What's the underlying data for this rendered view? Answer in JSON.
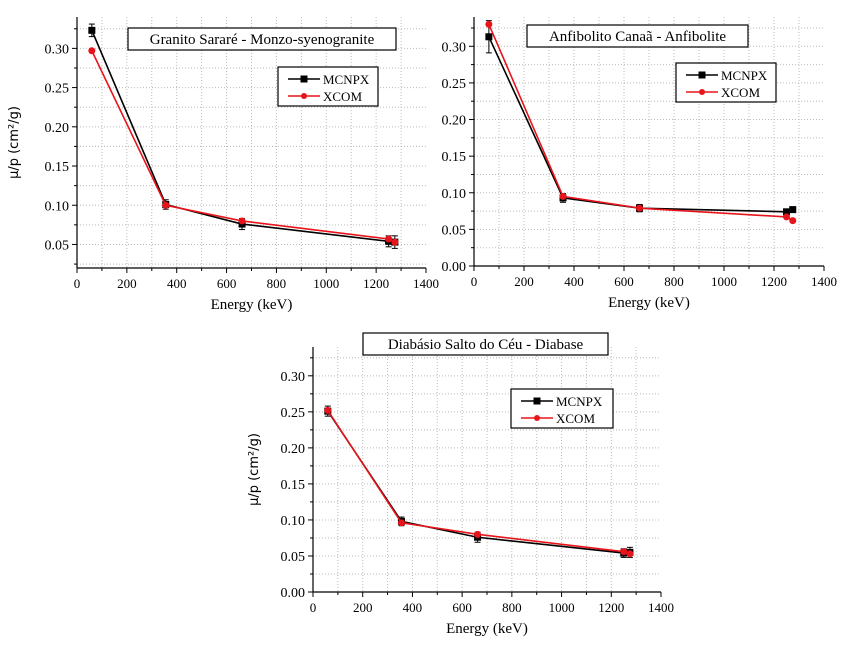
{
  "chart_data": [
    {
      "type": "line",
      "title": "Granito Sararé - Monzo-syenogranite",
      "xlabel": "Energy (keV)",
      "ylabel": "μ/p (cm²/g)",
      "xlim": [
        0,
        1400
      ],
      "ylim": [
        0.02,
        0.34
      ],
      "xticks": [
        0,
        200,
        400,
        600,
        800,
        1000,
        1200,
        1400
      ],
      "yticks": [
        0.05,
        0.1,
        0.15,
        0.2,
        0.25,
        0.3
      ],
      "grid": true,
      "legend": "top-right",
      "x": [
        59.5,
        356,
        662,
        1250,
        1275
      ],
      "series": [
        {
          "name": "MCNPX",
          "color": "#000000",
          "marker": "square",
          "values": [
            0.323,
            0.101,
            0.076,
            0.054,
            0.053
          ],
          "yerr": [
            0.008,
            0.006,
            0.007,
            0.007,
            0.008
          ]
        },
        {
          "name": "XCOM",
          "color": "#e8141b",
          "marker": "circle",
          "values": [
            0.297,
            0.1,
            0.08,
            0.057,
            0.053
          ]
        }
      ]
    },
    {
      "type": "line",
      "title": "Anfibolito Canaã - Anfibolite",
      "xlabel": "Energy (keV)",
      "ylabel": "",
      "xlim": [
        0,
        1400
      ],
      "ylim": [
        0,
        0.34
      ],
      "xticks": [
        0,
        200,
        400,
        600,
        800,
        1000,
        1200,
        1400
      ],
      "yticks": [
        0.0,
        0.05,
        0.1,
        0.15,
        0.2,
        0.25,
        0.3
      ],
      "grid": true,
      "legend": "top-right",
      "x": [
        59.5,
        356,
        662,
        1250,
        1275
      ],
      "series": [
        {
          "name": "MCNPX",
          "color": "#000000",
          "marker": "square",
          "values": [
            0.313,
            0.093,
            0.079,
            0.074,
            0.077
          ],
          "yerr": [
            0.022,
            0.006,
            0.005,
            0.003,
            0.003
          ]
        },
        {
          "name": "XCOM",
          "color": "#e8141b",
          "marker": "circle",
          "values": [
            0.33,
            0.095,
            0.079,
            0.067,
            0.062
          ]
        }
      ]
    },
    {
      "type": "line",
      "title": "Diabásio Salto do Céu - Diabase",
      "xlabel": "Energy (keV)",
      "ylabel": "μ/p (cm²/g)",
      "xlim": [
        0,
        1400
      ],
      "ylim": [
        0,
        0.34
      ],
      "xticks": [
        0,
        200,
        400,
        600,
        800,
        1000,
        1200,
        1400
      ],
      "yticks": [
        0.0,
        0.05,
        0.1,
        0.15,
        0.2,
        0.25,
        0.3
      ],
      "grid": true,
      "legend": "top-right",
      "x": [
        59.5,
        356,
        662,
        1250,
        1275
      ],
      "series": [
        {
          "name": "MCNPX",
          "color": "#000000",
          "marker": "square",
          "values": [
            0.251,
            0.098,
            0.076,
            0.054,
            0.055
          ],
          "yerr": [
            0.007,
            0.006,
            0.007,
            0.006,
            0.007
          ]
        },
        {
          "name": "XCOM",
          "color": "#e8141b",
          "marker": "circle",
          "values": [
            0.252,
            0.096,
            0.08,
            0.056,
            0.053
          ]
        }
      ]
    }
  ]
}
